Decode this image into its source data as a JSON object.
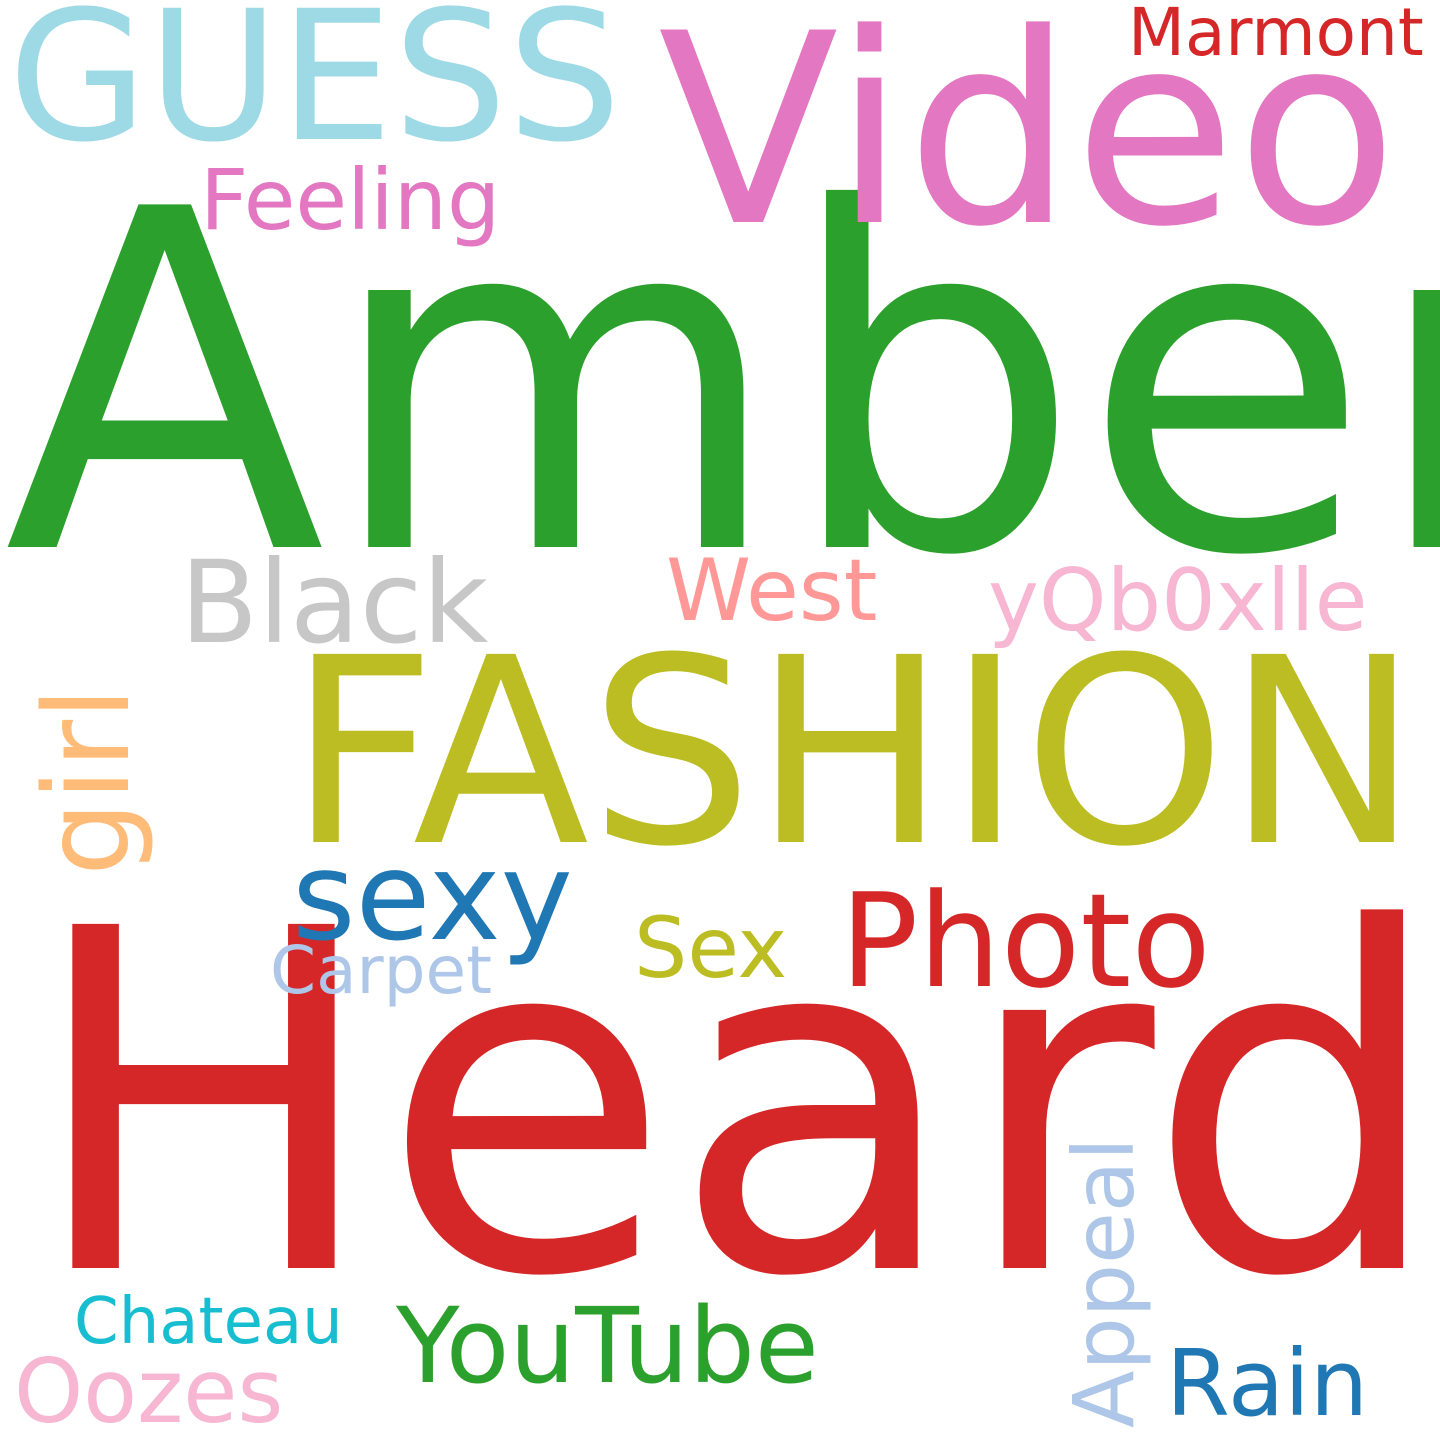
{
  "word_cloud": {
    "background_color": "#ffffff",
    "words": [
      {
        "text": "Amber",
        "color": "#2ca02c",
        "orientation": "horizontal"
      },
      {
        "text": "Heard",
        "color": "#d62728",
        "orientation": "horizontal"
      },
      {
        "text": "FASHION",
        "color": "#bcbd22",
        "orientation": "horizontal"
      },
      {
        "text": "Video",
        "color": "#e377c2",
        "orientation": "horizontal"
      },
      {
        "text": "GUESS",
        "color": "#9edae5",
        "orientation": "horizontal"
      },
      {
        "text": "Marmont",
        "color": "#d62728",
        "orientation": "horizontal"
      },
      {
        "text": "Feeling",
        "color": "#e377c2",
        "orientation": "horizontal"
      },
      {
        "text": "Black",
        "color": "#c7c7c7",
        "orientation": "horizontal"
      },
      {
        "text": "West",
        "color": "#ff9896",
        "orientation": "horizontal"
      },
      {
        "text": "yQb0xlle",
        "color": "#f7b6d2",
        "orientation": "horizontal"
      },
      {
        "text": "sexy",
        "color": "#1f77b4",
        "orientation": "horizontal"
      },
      {
        "text": "Photo",
        "color": "#d62728",
        "orientation": "horizontal"
      },
      {
        "text": "Sex",
        "color": "#bcbd22",
        "orientation": "horizontal"
      },
      {
        "text": "Carpet",
        "color": "#aec7e8",
        "orientation": "horizontal"
      },
      {
        "text": "YouTube",
        "color": "#2ca02c",
        "orientation": "horizontal"
      },
      {
        "text": "Chateau",
        "color": "#17becf",
        "orientation": "horizontal"
      },
      {
        "text": "Oozes",
        "color": "#f7b6d2",
        "orientation": "horizontal"
      },
      {
        "text": "Rain",
        "color": "#1f77b4",
        "orientation": "horizontal"
      },
      {
        "text": "girl",
        "color": "#ffbb78",
        "orientation": "vertical"
      },
      {
        "text": "Appeal",
        "color": "#aec7e8",
        "orientation": "vertical"
      }
    ]
  }
}
